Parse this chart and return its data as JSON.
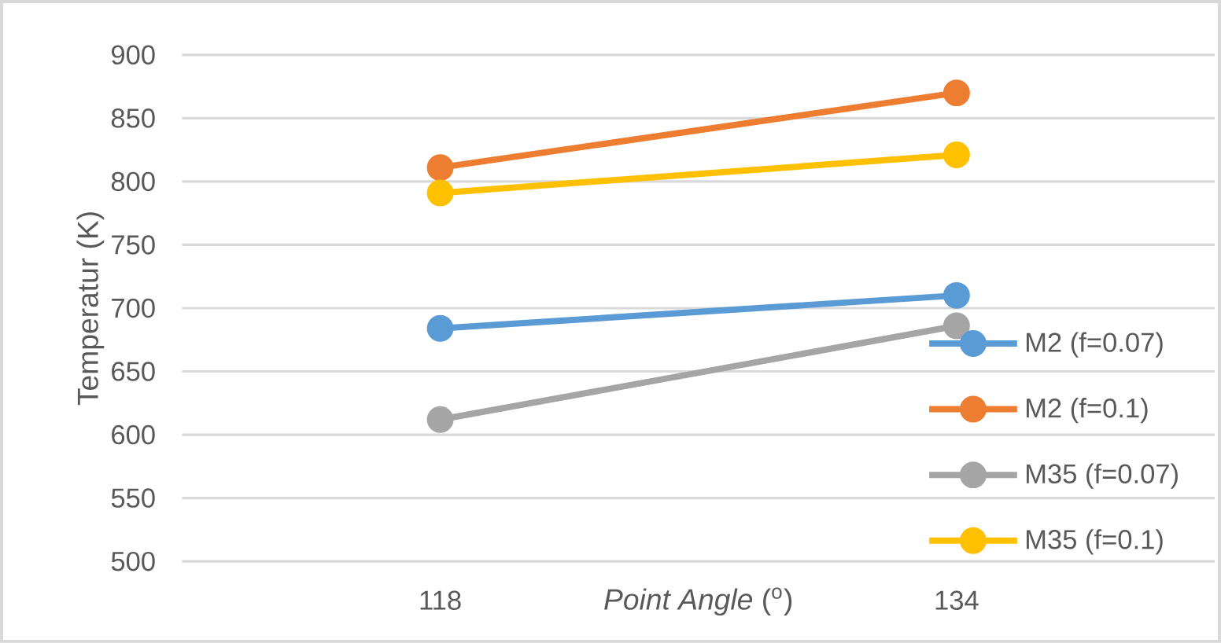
{
  "chart_data": {
    "type": "line",
    "xlabel": "*Point Angle* ($^{o}$)",
    "ylabel": "Temperatur (K)",
    "categories": [
      "118",
      "134"
    ],
    "series": [
      {
        "name": "M2 (f=0.07)",
        "color": "#5b9bd5",
        "values": [
          684,
          710
        ]
      },
      {
        "name": "M2 (f=0.1)",
        "color": "#ed7d31",
        "values": [
          811,
          870
        ]
      },
      {
        "name": "M35 (f=0.07)",
        "color": "#a5a5a5",
        "values": [
          612,
          686
        ]
      },
      {
        "name": "M35 (f=0.1)",
        "color": "#ffc000",
        "values": [
          791,
          821
        ]
      }
    ],
    "ylim": [
      500,
      900
    ],
    "yticks": [
      500,
      550,
      600,
      650,
      700,
      750,
      800,
      850,
      900
    ],
    "grid": "y",
    "legend": "right",
    "marker": "circle",
    "line_style": "solid"
  }
}
